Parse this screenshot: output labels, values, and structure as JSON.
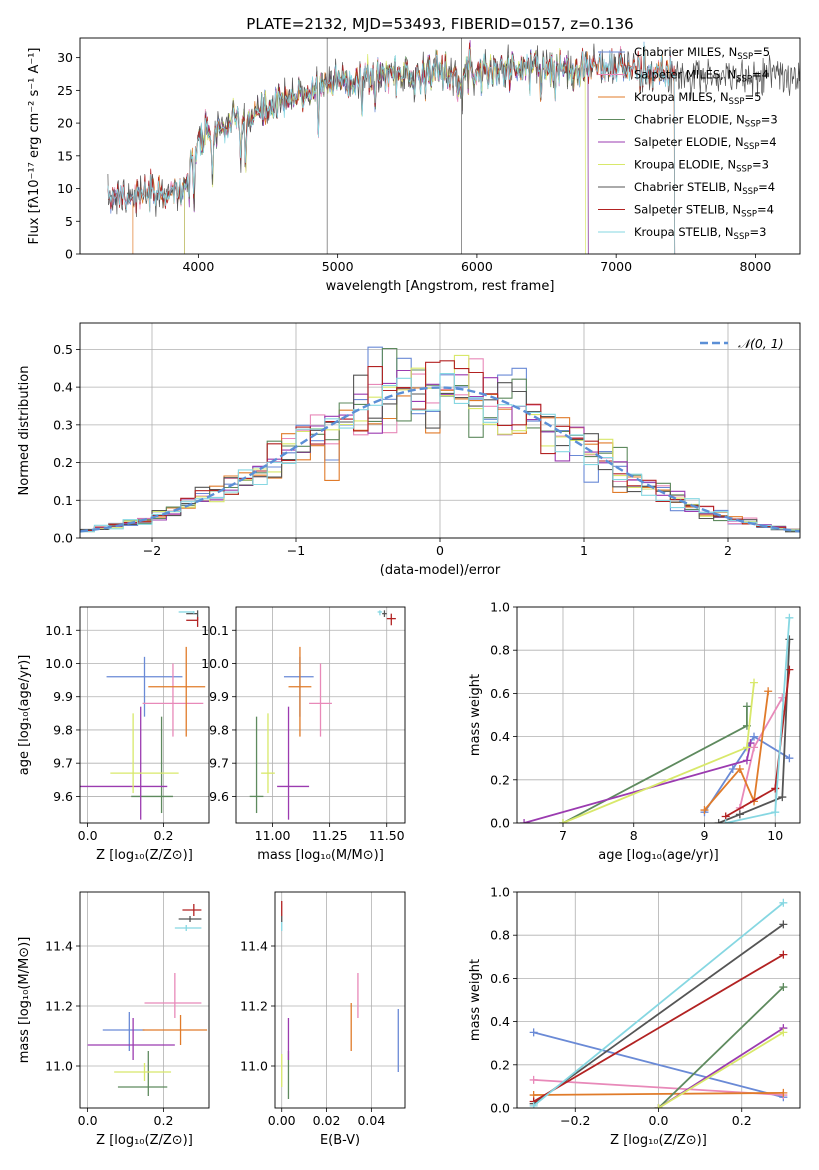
{
  "figure": {
    "title": "PLATE=2132, MJD=53493, FIBERID=0157, z=0.136"
  },
  "colors": {
    "Chabrier MILES": "#6a8ad6",
    "Salpeter MILES": "#e889b9",
    "Kroupa MILES": "#e07b2a",
    "Chabrier ELODIE": "#5e8a5e",
    "Salpeter ELODIE": "#9b3bb0",
    "Kroupa ELODIE": "#d8e86a",
    "Chabrier STELIB": "#555555",
    "Salpeter STELIB": "#b22222",
    "Kroupa STELIB": "#86d7e2"
  },
  "chart_data": [
    {
      "id": "spectrum",
      "type": "line",
      "title": "PLATE=2132, MJD=53493, FIBERID=0157, z=0.136",
      "xlabel": "wavelength [Angstrom, rest frame]",
      "ylabel": "Flux [fλ10⁻¹⁷ erg cm⁻² s⁻¹ A⁻¹]",
      "xlim": [
        3150,
        8320
      ],
      "ylim": [
        0,
        33
      ],
      "xticks": [
        4000,
        5000,
        6000,
        7000,
        8000
      ],
      "yticks": [
        0,
        5,
        10,
        15,
        20,
        25,
        30
      ],
      "legend_position": "top-right",
      "legend": [
        {
          "label": "Chabrier MILES, N",
          "sub": "SSP",
          "suffix": "=5",
          "series": "Chabrier MILES"
        },
        {
          "label": "Salpeter MILES, N",
          "sub": "SSP",
          "suffix": "=4",
          "series": "Salpeter MILES"
        },
        {
          "label": "Kroupa MILES, N",
          "sub": "SSP",
          "suffix": "=5",
          "series": "Kroupa MILES"
        },
        {
          "label": "Chabrier ELODIE, N",
          "sub": "SSP",
          "suffix": "=3",
          "series": "Chabrier ELODIE"
        },
        {
          "label": "Salpeter ELODIE, N",
          "sub": "SSP",
          "suffix": "=4",
          "series": "Salpeter ELODIE"
        },
        {
          "label": "Kroupa ELODIE, N",
          "sub": "SSP",
          "suffix": "=3",
          "series": "Kroupa ELODIE"
        },
        {
          "label": "Chabrier STELIB, N",
          "sub": "SSP",
          "suffix": "=4",
          "series": "Chabrier STELIB"
        },
        {
          "label": "Salpeter STELIB, N",
          "sub": "SSP",
          "suffix": "=4",
          "series": "Salpeter STELIB"
        },
        {
          "label": "Kroupa STELIB, N",
          "sub": "SSP",
          "suffix": "=3",
          "series": "Kroupa STELIB"
        }
      ],
      "continuum": {
        "wavelength": [
          3350,
          3500,
          3700,
          3900,
          4000,
          4200,
          4500,
          4800,
          5000,
          5300,
          5600,
          6000,
          6500,
          7000,
          7200,
          7420
        ],
        "flux": [
          9.5,
          9,
          9,
          10,
          17,
          19.5,
          22,
          25,
          26.5,
          27.5,
          27.5,
          28,
          28.5,
          28.5,
          28,
          27.5
        ]
      },
      "series": [
        {
          "name": "Chabrier MILES",
          "range": [
            3350,
            7420
          ]
        },
        {
          "name": "Salpeter MILES",
          "range": [
            3350,
            7420
          ]
        },
        {
          "name": "Kroupa MILES",
          "range": [
            3530,
            7420
          ]
        },
        {
          "name": "Chabrier ELODIE",
          "range": [
            3900,
            6800
          ]
        },
        {
          "name": "Salpeter ELODIE",
          "range": [
            3900,
            6800
          ]
        },
        {
          "name": "Kroupa ELODIE",
          "range": [
            3900,
            6780
          ]
        },
        {
          "name": "Chabrier STELIB",
          "range": [
            3350,
            8320
          ]
        },
        {
          "name": "Salpeter STELIB",
          "range": [
            3350,
            7420
          ]
        },
        {
          "name": "Kroupa STELIB",
          "range": [
            3350,
            7420
          ]
        }
      ]
    },
    {
      "id": "residuals",
      "type": "histogram",
      "xlabel": "(data-model)/error",
      "ylabel": "Normed distribution",
      "xlim": [
        -2.5,
        2.5
      ],
      "ylim": [
        0,
        0.57
      ],
      "xticks": [
        -2,
        -1,
        0,
        1,
        2
      ],
      "yticks": [
        0.0,
        0.1,
        0.2,
        0.3,
        0.4,
        0.5
      ],
      "grid": true,
      "legend_position": "top-right",
      "reference_label": "𝒩(0, 1)",
      "reference": {
        "name": "normal",
        "mean": 0,
        "sigma": 1,
        "color": "#5b8fd6"
      },
      "bin_width": 0.1,
      "series_names": [
        "Chabrier MILES",
        "Salpeter MILES",
        "Kroupa MILES",
        "Chabrier ELODIE",
        "Salpeter ELODIE",
        "Kroupa ELODIE",
        "Chabrier STELIB",
        "Salpeter STELIB",
        "Kroupa STELIB"
      ]
    },
    {
      "id": "age-vs-Z",
      "type": "errorbar",
      "xlabel": "Z [log₁₀(Z/Z⊙)]",
      "ylabel": "age  [log₁₀(age/yr)]",
      "xlim": [
        -0.02,
        0.32
      ],
      "ylim": [
        9.52,
        10.17
      ],
      "xticks": [
        0.0,
        0.2
      ],
      "yticks": [
        9.6,
        9.7,
        9.8,
        9.9,
        10.0,
        10.1
      ],
      "grid": true,
      "points": [
        {
          "series": "Chabrier MILES",
          "x": 0.15,
          "xerr": [
            0.1,
            0.1
          ],
          "y": 9.96,
          "yerr": [
            0.12,
            0.06
          ]
        },
        {
          "series": "Salpeter MILES",
          "x": 0.225,
          "xerr": [
            0.08,
            0.08
          ],
          "y": 9.88,
          "yerr": [
            0.1,
            0.12
          ]
        },
        {
          "series": "Kroupa MILES",
          "x": 0.26,
          "xerr": [
            0.1,
            0.05
          ],
          "y": 9.93,
          "yerr": [
            0.15,
            0.12
          ]
        },
        {
          "series": "Chabrier ELODIE",
          "x": 0.195,
          "xerr": [
            0.08,
            0.03
          ],
          "y": 9.6,
          "yerr": [
            0.05,
            0.24
          ]
        },
        {
          "series": "Salpeter ELODIE",
          "x": 0.14,
          "xerr": [
            0.16,
            0.07
          ],
          "y": 9.63,
          "yerr": [
            0.1,
            0.24
          ]
        },
        {
          "series": "Kroupa ELODIE",
          "x": 0.12,
          "xerr": [
            0.06,
            0.12
          ],
          "y": 9.67,
          "yerr": [
            0.06,
            0.18
          ]
        },
        {
          "series": "Chabrier STELIB",
          "x": 0.29,
          "xerr": [
            0.03,
            0.0
          ],
          "y": 10.15,
          "yerr": [
            0.02,
            0.01
          ]
        },
        {
          "series": "Salpeter STELIB",
          "x": 0.29,
          "xerr": [
            0.03,
            0.0
          ],
          "y": 10.13,
          "yerr": [
            0.02,
            0.01
          ]
        },
        {
          "series": "Kroupa STELIB",
          "x": 0.28,
          "xerr": [
            0.04,
            0.0
          ],
          "y": 10.155,
          "yerr": [
            0.005,
            0.003
          ]
        }
      ]
    },
    {
      "id": "age-vs-mass",
      "type": "errorbar",
      "xlabel": "mass [log₁₀(M/M⊙)]",
      "ylabel": "",
      "xlim": [
        10.84,
        11.58
      ],
      "ylim": [
        9.52,
        10.17
      ],
      "xticks": [
        11.0,
        11.25,
        11.5
      ],
      "yticks": [
        9.6,
        9.7,
        9.8,
        9.9,
        10.0,
        10.1
      ],
      "grid": true,
      "points": [
        {
          "series": "Chabrier MILES",
          "x": 11.12,
          "xerr": [
            0.07,
            0.06
          ],
          "y": 9.96,
          "yerr": [
            0.12,
            0.06
          ]
        },
        {
          "series": "Salpeter MILES",
          "x": 11.21,
          "xerr": [
            0.05,
            0.05
          ],
          "y": 9.88,
          "yerr": [
            0.1,
            0.12
          ]
        },
        {
          "series": "Kroupa MILES",
          "x": 11.12,
          "xerr": [
            0.05,
            0.05
          ],
          "y": 9.93,
          "yerr": [
            0.15,
            0.12
          ]
        },
        {
          "series": "Chabrier ELODIE",
          "x": 10.93,
          "xerr": [
            0.03,
            0.03
          ],
          "y": 9.6,
          "yerr": [
            0.05,
            0.24
          ]
        },
        {
          "series": "Salpeter ELODIE",
          "x": 11.07,
          "xerr": [
            0.05,
            0.09
          ],
          "y": 9.63,
          "yerr": [
            0.1,
            0.24
          ]
        },
        {
          "series": "Kroupa ELODIE",
          "x": 10.98,
          "xerr": [
            0.03,
            0.03
          ],
          "y": 9.67,
          "yerr": [
            0.06,
            0.18
          ]
        },
        {
          "series": "Chabrier STELIB",
          "x": 11.49,
          "xerr": [
            0.01,
            0.01
          ],
          "y": 10.15,
          "yerr": [
            0.01,
            0.01
          ]
        },
        {
          "series": "Salpeter STELIB",
          "x": 11.52,
          "xerr": [
            0.02,
            0.02
          ],
          "y": 10.135,
          "yerr": [
            0.02,
            0.015
          ]
        },
        {
          "series": "Kroupa STELIB",
          "x": 11.47,
          "xerr": [
            0.01,
            0.01
          ],
          "y": 10.155,
          "yerr": [
            0.01,
            0.005
          ]
        }
      ]
    },
    {
      "id": "weight-vs-age",
      "type": "line",
      "xlabel": "age  [log₁₀(age/yr)]",
      "ylabel": "mass weight",
      "xlim": [
        6.35,
        10.35
      ],
      "ylim": [
        0,
        1.0
      ],
      "xticks": [
        7,
        8,
        9,
        10
      ],
      "yticks": [
        0.0,
        0.2,
        0.4,
        0.6,
        0.8,
        1.0
      ],
      "grid": true,
      "series": [
        {
          "name": "Chabrier MILES",
          "x": [
            9.0,
            9.4,
            9.7,
            10.2
          ],
          "y": [
            0.05,
            0.25,
            0.4,
            0.3
          ]
        },
        {
          "name": "Salpeter MILES",
          "x": [
            9.5,
            9.7,
            10.1
          ],
          "y": [
            0.07,
            0.35,
            0.58
          ]
        },
        {
          "name": "Kroupa MILES",
          "x": [
            9.0,
            9.5,
            9.7,
            9.9
          ],
          "y": [
            0.06,
            0.25,
            0.1,
            0.61
          ]
        },
        {
          "name": "Chabrier ELODIE",
          "x": [
            7.0,
            9.6,
            9.6
          ],
          "y": [
            0.0,
            0.45,
            0.54
          ]
        },
        {
          "name": "Salpeter ELODIE",
          "x": [
            6.45,
            9.6,
            9.65
          ],
          "y": [
            0.0,
            0.29,
            0.37
          ]
        },
        {
          "name": "Kroupa ELODIE",
          "x": [
            7.0,
            9.6,
            9.7
          ],
          "y": [
            0.0,
            0.35,
            0.65
          ]
        },
        {
          "name": "Chabrier STELIB",
          "x": [
            9.2,
            9.5,
            10.1,
            10.2
          ],
          "y": [
            0.0,
            0.04,
            0.12,
            0.85
          ]
        },
        {
          "name": "Salpeter STELIB",
          "x": [
            9.3,
            10.0,
            10.2
          ],
          "y": [
            0.03,
            0.16,
            0.71
          ]
        },
        {
          "name": "Kroupa STELIB",
          "x": [
            9.3,
            10.0,
            10.2
          ],
          "y": [
            0.0,
            0.05,
            0.95
          ]
        }
      ]
    },
    {
      "id": "mass-vs-Z",
      "type": "errorbar",
      "xlabel": "Z [log₁₀(Z/Z⊙)]",
      "ylabel": "mass [log₁₀(M/M⊙)]",
      "xlim": [
        -0.02,
        0.32
      ],
      "ylim": [
        10.86,
        11.58
      ],
      "xticks": [
        0.0,
        0.2
      ],
      "yticks": [
        11.0,
        11.2,
        11.4
      ],
      "grid": true,
      "points": [
        {
          "series": "Chabrier MILES",
          "x": 0.11,
          "xerr": [
            0.07,
            0.04
          ],
          "y": 11.12,
          "yerr": [
            0.07,
            0.06
          ]
        },
        {
          "series": "Salpeter MILES",
          "x": 0.23,
          "xerr": [
            0.08,
            0.07
          ],
          "y": 11.21,
          "yerr": [
            0.05,
            0.1
          ]
        },
        {
          "series": "Kroupa MILES",
          "x": 0.245,
          "xerr": [
            0.1,
            0.07
          ],
          "y": 11.12,
          "yerr": [
            0.05,
            0.05
          ]
        },
        {
          "series": "Chabrier ELODIE",
          "x": 0.16,
          "xerr": [
            0.08,
            0.05
          ],
          "y": 10.93,
          "yerr": [
            0.03,
            0.12
          ]
        },
        {
          "series": "Salpeter ELODIE",
          "x": 0.12,
          "xerr": [
            0.12,
            0.11
          ],
          "y": 11.07,
          "yerr": [
            0.05,
            0.09
          ]
        },
        {
          "series": "Kroupa ELODIE",
          "x": 0.15,
          "xerr": [
            0.08,
            0.07
          ],
          "y": 10.98,
          "yerr": [
            0.03,
            0.03
          ]
        },
        {
          "series": "Chabrier STELIB",
          "x": 0.27,
          "xerr": [
            0.03,
            0.03
          ],
          "y": 11.49,
          "yerr": [
            0.01,
            0.01
          ]
        },
        {
          "series": "Salpeter STELIB",
          "x": 0.28,
          "xerr": [
            0.03,
            0.02
          ],
          "y": 11.52,
          "yerr": [
            0.02,
            0.02
          ]
        },
        {
          "series": "Kroupa STELIB",
          "x": 0.26,
          "xerr": [
            0.03,
            0.04
          ],
          "y": 11.46,
          "yerr": [
            0.01,
            0.01
          ]
        }
      ]
    },
    {
      "id": "mass-vs-EBV",
      "type": "errorbar",
      "xlabel": "E(B-V)",
      "ylabel": "",
      "xlim": [
        -0.003,
        0.055
      ],
      "ylim": [
        10.86,
        11.58
      ],
      "xticks": [
        0.0,
        0.02,
        0.04
      ],
      "yticks": [
        11.0,
        11.2,
        11.4
      ],
      "grid": true,
      "points": [
        {
          "series": "Chabrier MILES",
          "x": 0.052,
          "y": 11.08,
          "yerr": [
            0.1,
            0.11
          ]
        },
        {
          "series": "Salpeter MILES",
          "x": 0.034,
          "y": 11.21,
          "yerr": [
            0.05,
            0.1
          ]
        },
        {
          "series": "Kroupa MILES",
          "x": 0.031,
          "y": 11.12,
          "yerr": [
            0.07,
            0.09
          ]
        },
        {
          "series": "Chabrier ELODIE",
          "x": 0.003,
          "y": 11.0,
          "yerr": [
            0.11,
            0.05
          ]
        },
        {
          "series": "Salpeter ELODIE",
          "x": 0.003,
          "y": 11.07,
          "yerr": [
            0.05,
            0.09
          ]
        },
        {
          "series": "Kroupa ELODIE",
          "x": 0.0,
          "y": 10.98,
          "yerr": [
            0.05,
            0.06
          ]
        },
        {
          "series": "Chabrier STELIB",
          "x": 0.0,
          "y": 11.49,
          "yerr": [
            0.01,
            0.01
          ]
        },
        {
          "series": "Salpeter STELIB",
          "x": 0.0,
          "y": 11.52,
          "yerr": [
            0.02,
            0.03
          ]
        },
        {
          "series": "Kroupa STELIB",
          "x": 0.0,
          "y": 11.46,
          "yerr": [
            0.01,
            0.02
          ]
        }
      ]
    },
    {
      "id": "weight-vs-Z",
      "type": "line",
      "xlabel": "Z [log₁₀(Z/Z⊙)]",
      "ylabel": "mass weight",
      "xlim": [
        -0.34,
        0.34
      ],
      "ylim": [
        0,
        1.0
      ],
      "xticks": [
        -0.2,
        0.0,
        0.2
      ],
      "yticks": [
        0.0,
        0.2,
        0.4,
        0.6,
        0.8,
        1.0
      ],
      "grid": true,
      "series": [
        {
          "name": "Chabrier MILES",
          "x": [
            -0.3,
            0.3
          ],
          "y": [
            0.35,
            0.05
          ]
        },
        {
          "name": "Salpeter MILES",
          "x": [
            -0.3,
            0.3
          ],
          "y": [
            0.13,
            0.06
          ]
        },
        {
          "name": "Kroupa MILES",
          "x": [
            -0.3,
            0.3
          ],
          "y": [
            0.06,
            0.07
          ]
        },
        {
          "name": "Chabrier ELODIE",
          "x": [
            0.0,
            0.3
          ],
          "y": [
            0.0,
            0.56
          ]
        },
        {
          "name": "Salpeter ELODIE",
          "x": [
            0.0,
            0.3
          ],
          "y": [
            0.0,
            0.37
          ]
        },
        {
          "name": "Kroupa ELODIE",
          "x": [
            0.0,
            0.3
          ],
          "y": [
            0.0,
            0.35
          ]
        },
        {
          "name": "Chabrier STELIB",
          "x": [
            -0.3,
            0.3
          ],
          "y": [
            0.02,
            0.85
          ]
        },
        {
          "name": "Salpeter STELIB",
          "x": [
            -0.3,
            0.3
          ],
          "y": [
            0.03,
            0.71
          ]
        },
        {
          "name": "Kroupa STELIB",
          "x": [
            -0.3,
            0.3
          ],
          "y": [
            0.01,
            0.95
          ]
        }
      ]
    }
  ]
}
